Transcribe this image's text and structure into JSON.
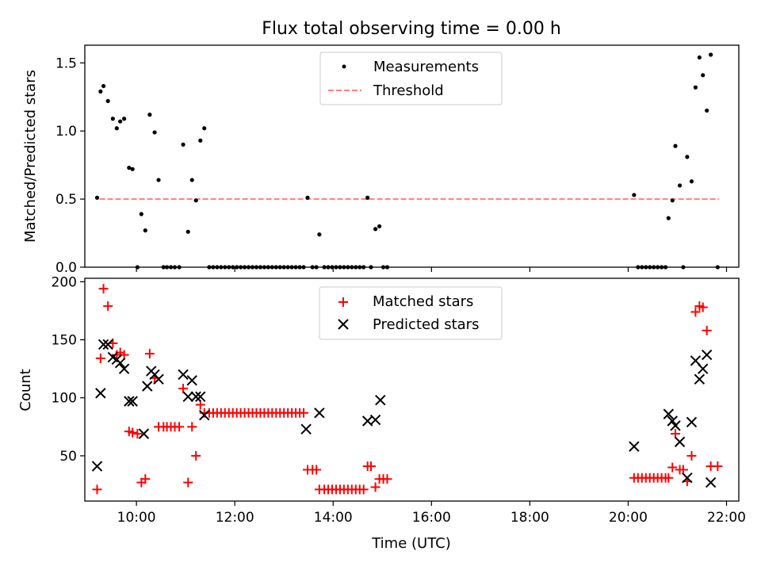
{
  "figure": {
    "title": "Flux total observing time = 0.00 h"
  },
  "chart_data": [
    {
      "type": "scatter",
      "ylabel": "Matched/Predicted stars",
      "ylim": [
        0,
        1.63
      ],
      "xlim": [
        8.95,
        22.25
      ],
      "x_unit": "hours UTC",
      "yticks": [
        0.0,
        0.5,
        1.0,
        1.5
      ],
      "ytick_labels": [
        "0.0",
        "0.5",
        "1.0",
        "1.5"
      ],
      "legend": {
        "position": "top-center",
        "entries": [
          "Measurements",
          "Threshold"
        ]
      },
      "threshold": {
        "value": 0.5,
        "x_start": 9.25,
        "x_end": 21.85,
        "color": "#ff7f7f"
      },
      "series": [
        {
          "name": "Measurements",
          "color": "#000000",
          "points": [
            [
              9.2,
              0.51
            ],
            [
              9.27,
              1.29
            ],
            [
              9.33,
              1.33
            ],
            [
              9.42,
              1.22
            ],
            [
              9.52,
              1.09
            ],
            [
              9.6,
              1.02
            ],
            [
              9.67,
              1.07
            ],
            [
              9.75,
              1.09
            ],
            [
              9.85,
              0.73
            ],
            [
              9.92,
              0.72
            ],
            [
              10.02,
              0.0
            ],
            [
              10.1,
              0.39
            ],
            [
              10.18,
              0.27
            ],
            [
              10.27,
              1.12
            ],
            [
              10.37,
              0.99
            ],
            [
              10.45,
              0.64
            ],
            [
              10.55,
              0.0
            ],
            [
              10.62,
              0.0
            ],
            [
              10.7,
              0.0
            ],
            [
              10.78,
              0.0
            ],
            [
              10.87,
              0.0
            ],
            [
              10.95,
              0.9
            ],
            [
              11.05,
              0.26
            ],
            [
              11.13,
              0.64
            ],
            [
              11.21,
              0.49
            ],
            [
              11.3,
              0.93
            ],
            [
              11.38,
              1.02
            ],
            [
              11.48,
              0.0
            ],
            [
              11.56,
              0.0
            ],
            [
              11.64,
              0.0
            ],
            [
              11.72,
              0.0
            ],
            [
              11.8,
              0.0
            ],
            [
              11.88,
              0.0
            ],
            [
              11.96,
              0.0
            ],
            [
              12.04,
              0.0
            ],
            [
              12.12,
              0.0
            ],
            [
              12.2,
              0.0
            ],
            [
              12.28,
              0.0
            ],
            [
              12.36,
              0.0
            ],
            [
              12.44,
              0.0
            ],
            [
              12.52,
              0.0
            ],
            [
              12.6,
              0.0
            ],
            [
              12.68,
              0.0
            ],
            [
              12.76,
              0.0
            ],
            [
              12.84,
              0.0
            ],
            [
              12.92,
              0.0
            ],
            [
              13.0,
              0.0
            ],
            [
              13.08,
              0.0
            ],
            [
              13.16,
              0.0
            ],
            [
              13.24,
              0.0
            ],
            [
              13.32,
              0.0
            ],
            [
              13.4,
              0.0
            ],
            [
              13.48,
              0.51
            ],
            [
              13.58,
              0.0
            ],
            [
              13.66,
              0.0
            ],
            [
              13.72,
              0.24
            ],
            [
              13.82,
              0.0
            ],
            [
              13.9,
              0.0
            ],
            [
              13.98,
              0.0
            ],
            [
              14.06,
              0.0
            ],
            [
              14.14,
              0.0
            ],
            [
              14.22,
              0.0
            ],
            [
              14.3,
              0.0
            ],
            [
              14.38,
              0.0
            ],
            [
              14.46,
              0.0
            ],
            [
              14.54,
              0.0
            ],
            [
              14.62,
              0.0
            ],
            [
              14.7,
              0.51
            ],
            [
              14.77,
              0.0
            ],
            [
              14.86,
              0.28
            ],
            [
              14.94,
              0.3
            ],
            [
              15.02,
              0.0
            ],
            [
              15.1,
              0.0
            ],
            [
              20.12,
              0.53
            ],
            [
              20.2,
              0.0
            ],
            [
              20.28,
              0.0
            ],
            [
              20.36,
              0.0
            ],
            [
              20.44,
              0.0
            ],
            [
              20.52,
              0.0
            ],
            [
              20.6,
              0.0
            ],
            [
              20.68,
              0.0
            ],
            [
              20.76,
              0.0
            ],
            [
              20.82,
              0.36
            ],
            [
              20.9,
              0.49
            ],
            [
              20.96,
              0.89
            ],
            [
              21.05,
              0.6
            ],
            [
              21.12,
              0.0
            ],
            [
              21.2,
              0.81
            ],
            [
              21.29,
              0.63
            ],
            [
              21.37,
              1.32
            ],
            [
              21.45,
              1.54
            ],
            [
              21.52,
              1.41
            ],
            [
              21.6,
              1.15
            ],
            [
              21.68,
              1.56
            ],
            [
              21.82,
              0.0
            ]
          ]
        }
      ]
    },
    {
      "type": "scatter",
      "xlabel": "Time (UTC)",
      "ylabel": "Count",
      "ylim": [
        11,
        203
      ],
      "xlim": [
        8.95,
        22.25
      ],
      "yticks": [
        50,
        100,
        150,
        200
      ],
      "ytick_labels": [
        "50",
        "100",
        "150",
        "200"
      ],
      "xticks": [
        10,
        12,
        14,
        16,
        18,
        20,
        22
      ],
      "xtick_labels": [
        "10:00",
        "12:00",
        "14:00",
        "16:00",
        "18:00",
        "20:00",
        "22:00"
      ],
      "legend": {
        "position": "top-center",
        "entries": [
          "Matched stars",
          "Predicted stars"
        ]
      },
      "series": [
        {
          "name": "Matched stars",
          "marker": "plus",
          "color": "#ff0000",
          "points": [
            [
              9.2,
              21
            ],
            [
              9.27,
              134
            ],
            [
              9.33,
              194
            ],
            [
              9.42,
              179
            ],
            [
              9.52,
              147
            ],
            [
              9.6,
              137
            ],
            [
              9.67,
              139
            ],
            [
              9.75,
              137
            ],
            [
              9.85,
              71
            ],
            [
              9.92,
              70
            ],
            [
              10.02,
              69
            ],
            [
              10.1,
              27
            ],
            [
              10.18,
              30
            ],
            [
              10.27,
              138
            ],
            [
              10.37,
              117
            ],
            [
              10.45,
              75
            ],
            [
              10.55,
              75
            ],
            [
              10.62,
              75
            ],
            [
              10.7,
              75
            ],
            [
              10.78,
              75
            ],
            [
              10.87,
              75
            ],
            [
              10.95,
              108
            ],
            [
              11.05,
              27
            ],
            [
              11.13,
              75
            ],
            [
              11.21,
              50
            ],
            [
              11.3,
              94
            ],
            [
              11.38,
              87
            ],
            [
              11.48,
              87
            ],
            [
              11.56,
              87
            ],
            [
              11.64,
              87
            ],
            [
              11.72,
              87
            ],
            [
              11.8,
              87
            ],
            [
              11.88,
              87
            ],
            [
              11.96,
              87
            ],
            [
              12.04,
              87
            ],
            [
              12.12,
              87
            ],
            [
              12.2,
              87
            ],
            [
              12.28,
              87
            ],
            [
              12.36,
              87
            ],
            [
              12.44,
              87
            ],
            [
              12.52,
              87
            ],
            [
              12.6,
              87
            ],
            [
              12.68,
              87
            ],
            [
              12.76,
              87
            ],
            [
              12.84,
              87
            ],
            [
              12.92,
              87
            ],
            [
              13.0,
              87
            ],
            [
              13.08,
              87
            ],
            [
              13.16,
              87
            ],
            [
              13.24,
              87
            ],
            [
              13.32,
              87
            ],
            [
              13.4,
              87
            ],
            [
              13.48,
              38
            ],
            [
              13.58,
              38
            ],
            [
              13.66,
              38
            ],
            [
              13.72,
              21
            ],
            [
              13.82,
              21
            ],
            [
              13.9,
              21
            ],
            [
              13.98,
              21
            ],
            [
              14.06,
              21
            ],
            [
              14.14,
              21
            ],
            [
              14.22,
              21
            ],
            [
              14.3,
              21
            ],
            [
              14.38,
              21
            ],
            [
              14.46,
              21
            ],
            [
              14.54,
              21
            ],
            [
              14.62,
              21
            ],
            [
              14.7,
              41
            ],
            [
              14.77,
              41
            ],
            [
              14.86,
              23
            ],
            [
              14.94,
              30
            ],
            [
              15.02,
              30
            ],
            [
              15.1,
              30
            ],
            [
              20.12,
              31
            ],
            [
              20.2,
              31
            ],
            [
              20.28,
              31
            ],
            [
              20.36,
              31
            ],
            [
              20.44,
              31
            ],
            [
              20.52,
              31
            ],
            [
              20.6,
              31
            ],
            [
              20.68,
              31
            ],
            [
              20.76,
              31
            ],
            [
              20.82,
              31
            ],
            [
              20.9,
              40
            ],
            [
              20.96,
              69
            ],
            [
              21.05,
              38
            ],
            [
              21.12,
              38
            ],
            [
              21.2,
              28
            ],
            [
              21.29,
              50
            ],
            [
              21.37,
              174
            ],
            [
              21.45,
              179
            ],
            [
              21.52,
              178
            ],
            [
              21.6,
              158
            ],
            [
              21.68,
              41
            ],
            [
              21.82,
              41
            ]
          ]
        },
        {
          "name": "Predicted stars",
          "marker": "x",
          "color": "#000000",
          "points": [
            [
              9.2,
              41
            ],
            [
              9.27,
              104
            ],
            [
              9.33,
              146
            ],
            [
              9.42,
              146
            ],
            [
              9.52,
              135
            ],
            [
              9.6,
              133
            ],
            [
              9.67,
              130
            ],
            [
              9.75,
              125
            ],
            [
              9.85,
              97
            ],
            [
              9.92,
              97
            ],
            [
              10.15,
              69
            ],
            [
              10.22,
              110
            ],
            [
              10.3,
              123
            ],
            [
              10.37,
              120
            ],
            [
              10.45,
              116
            ],
            [
              10.95,
              120
            ],
            [
              11.05,
              101
            ],
            [
              11.13,
              115
            ],
            [
              11.21,
              101
            ],
            [
              11.3,
              101
            ],
            [
              11.38,
              85
            ],
            [
              13.45,
              73
            ],
            [
              13.72,
              87
            ],
            [
              14.7,
              80
            ],
            [
              14.86,
              81
            ],
            [
              14.96,
              98
            ],
            [
              20.12,
              58
            ],
            [
              20.82,
              86
            ],
            [
              20.9,
              80
            ],
            [
              20.96,
              76
            ],
            [
              21.05,
              62
            ],
            [
              21.2,
              31
            ],
            [
              21.29,
              79
            ],
            [
              21.37,
              132
            ],
            [
              21.45,
              116
            ],
            [
              21.52,
              125
            ],
            [
              21.6,
              137
            ],
            [
              21.68,
              27
            ]
          ]
        }
      ]
    }
  ]
}
